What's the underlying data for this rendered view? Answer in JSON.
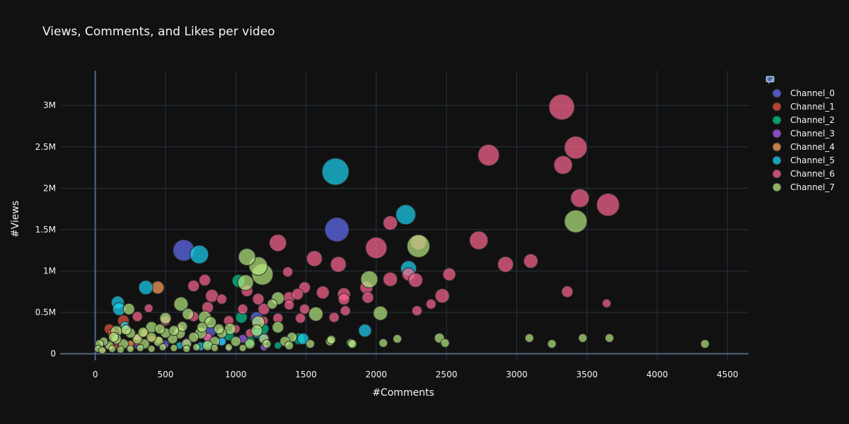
{
  "chart_data": {
    "type": "scatter",
    "title": "Views, Comments, and Likes per video",
    "xlabel": "#Comments",
    "ylabel": "#Views",
    "xlim": [
      -250,
      4650
    ],
    "ylim": [
      -80000,
      3420000
    ],
    "xticks": [
      0,
      500,
      1000,
      1500,
      2000,
      2500,
      3000,
      3500,
      4000,
      4500
    ],
    "xtick_labels": [
      "0",
      "500",
      "1000",
      "1500",
      "2000",
      "2500",
      "3000",
      "3500",
      "4000",
      "4500"
    ],
    "yticks": [
      0,
      500000,
      1000000,
      1500000,
      2000000,
      2500000,
      3000000
    ],
    "ytick_labels": [
      "0",
      "0.5M",
      "1M",
      "1.5M",
      "2M",
      "2.5M",
      "3M"
    ],
    "grid": true,
    "bubble_size": "#Likes",
    "legend": {
      "position": "right",
      "title_icon": "bubble-icon"
    },
    "series": [
      {
        "name": "Channel_0",
        "color": "#636efa",
        "points": [
          [
            630,
            1250000,
            15
          ],
          [
            1720,
            1500000,
            17
          ],
          [
            1150,
            430000,
            9
          ],
          [
            820,
            280000,
            8
          ],
          [
            1200,
            200000,
            7
          ],
          [
            900,
            150000,
            6
          ],
          [
            300,
            100000,
            5
          ],
          [
            500,
            120000,
            5
          ]
        ]
      },
      {
        "name": "Channel_1",
        "color": "#ef553b",
        "points": [
          [
            100,
            300000,
            7
          ],
          [
            200,
            400000,
            8
          ],
          [
            300,
            150000,
            6
          ],
          [
            150,
            100000,
            5
          ],
          [
            250,
            80000,
            4
          ],
          [
            120,
            250000,
            6
          ],
          [
            60,
            50000,
            4
          ],
          [
            400,
            180000,
            5
          ]
        ]
      },
      {
        "name": "Channel_2",
        "color": "#00cc96",
        "points": [
          [
            1020,
            880000,
            9
          ],
          [
            1040,
            440000,
            8
          ],
          [
            1100,
            150000,
            7
          ],
          [
            1450,
            180000,
            8
          ],
          [
            1200,
            300000,
            7
          ],
          [
            800,
            120000,
            6
          ],
          [
            950,
            220000,
            7
          ],
          [
            1300,
            100000,
            5
          ]
        ]
      },
      {
        "name": "Channel_3",
        "color": "#ab63fa",
        "points": [
          [
            1200,
            80000,
            5
          ],
          [
            950,
            60000,
            4
          ],
          [
            1050,
            180000,
            6
          ],
          [
            800,
            200000,
            6
          ],
          [
            650,
            150000,
            5
          ],
          [
            500,
            100000,
            4
          ]
        ]
      },
      {
        "name": "Channel_4",
        "color": "#ffa15a",
        "points": [
          [
            445,
            800000,
            9
          ],
          [
            200,
            300000,
            7
          ],
          [
            300,
            200000,
            6
          ],
          [
            150,
            150000,
            5
          ],
          [
            250,
            120000,
            5
          ],
          [
            350,
            250000,
            6
          ],
          [
            100,
            80000,
            4
          ],
          [
            450,
            170000,
            5
          ]
        ]
      },
      {
        "name": "Channel_5",
        "color": "#19d3f3",
        "points": [
          [
            1710,
            2200000,
            19
          ],
          [
            2210,
            1680000,
            14
          ],
          [
            740,
            1200000,
            13
          ],
          [
            360,
            800000,
            10
          ],
          [
            160,
            620000,
            9
          ],
          [
            170,
            540000,
            9
          ],
          [
            2230,
            1030000,
            11
          ],
          [
            1920,
            280000,
            9
          ],
          [
            1480,
            180000,
            8
          ],
          [
            750,
            90000,
            6
          ],
          [
            1150,
            250000,
            7
          ],
          [
            210,
            340000,
            6
          ],
          [
            600,
            100000,
            5
          ],
          [
            900,
            150000,
            6
          ]
        ]
      },
      {
        "name": "Channel_6",
        "color": "#ff6692",
        "points": [
          [
            3320,
            2980000,
            18
          ],
          [
            3420,
            2490000,
            16
          ],
          [
            3330,
            2280000,
            13
          ],
          [
            2800,
            2400000,
            15
          ],
          [
            3450,
            1880000,
            13
          ],
          [
            3650,
            1800000,
            16
          ],
          [
            2000,
            1280000,
            15
          ],
          [
            2730,
            1370000,
            13
          ],
          [
            2300,
            1350000,
            11
          ],
          [
            1300,
            1340000,
            12
          ],
          [
            1730,
            1080000,
            11
          ],
          [
            2920,
            1080000,
            11
          ],
          [
            3100,
            1120000,
            10
          ],
          [
            1560,
            1150000,
            11
          ],
          [
            2100,
            1580000,
            10
          ],
          [
            2520,
            960000,
            9
          ],
          [
            2230,
            960000,
            9
          ],
          [
            2100,
            900000,
            10
          ],
          [
            2280,
            890000,
            10
          ],
          [
            1930,
            800000,
            9
          ],
          [
            1490,
            800000,
            8
          ],
          [
            2470,
            700000,
            10
          ],
          [
            1620,
            740000,
            9
          ],
          [
            1770,
            720000,
            9
          ],
          [
            1770,
            660000,
            8
          ],
          [
            1940,
            680000,
            8
          ],
          [
            1370,
            990000,
            7
          ],
          [
            1380,
            680000,
            8
          ],
          [
            1440,
            720000,
            8
          ],
          [
            1160,
            660000,
            8
          ],
          [
            1080,
            760000,
            8
          ],
          [
            830,
            700000,
            9
          ],
          [
            780,
            890000,
            8
          ],
          [
            700,
            820000,
            8
          ],
          [
            900,
            660000,
            7
          ],
          [
            800,
            560000,
            8
          ],
          [
            1700,
            440000,
            7
          ],
          [
            1780,
            520000,
            7
          ],
          [
            2290,
            520000,
            7
          ],
          [
            2390,
            600000,
            7
          ],
          [
            3360,
            750000,
            8
          ],
          [
            3640,
            610000,
            6
          ],
          [
            1300,
            430000,
            7
          ],
          [
            1200,
            540000,
            8
          ],
          [
            1460,
            430000,
            7
          ],
          [
            1050,
            540000,
            7
          ],
          [
            1380,
            590000,
            7
          ],
          [
            1490,
            540000,
            7
          ],
          [
            700,
            450000,
            7
          ],
          [
            950,
            400000,
            7
          ],
          [
            500,
            400000,
            7
          ],
          [
            300,
            450000,
            7
          ],
          [
            380,
            550000,
            6
          ],
          [
            300,
            200000,
            5
          ],
          [
            600,
            300000,
            6
          ],
          [
            1000,
            300000,
            6
          ],
          [
            1200,
            400000,
            6
          ],
          [
            1100,
            250000,
            6
          ],
          [
            800,
            200000,
            6
          ]
        ]
      },
      {
        "name": "Channel_7",
        "color": "#b6e880",
        "points": [
          [
            3420,
            1600000,
            16
          ],
          [
            2300,
            1300000,
            16
          ],
          [
            1190,
            960000,
            15
          ],
          [
            1160,
            1060000,
            13
          ],
          [
            1080,
            1170000,
            12
          ],
          [
            1950,
            900000,
            12
          ],
          [
            1070,
            860000,
            11
          ],
          [
            2030,
            490000,
            10
          ],
          [
            1570,
            480000,
            10
          ],
          [
            610,
            600000,
            10
          ],
          [
            1300,
            670000,
            9
          ],
          [
            1160,
            380000,
            9
          ],
          [
            780,
            440000,
            9
          ],
          [
            660,
            480000,
            8
          ],
          [
            500,
            430000,
            8
          ],
          [
            820,
            380000,
            8
          ],
          [
            240,
            540000,
            8
          ],
          [
            1260,
            600000,
            7
          ],
          [
            1300,
            320000,
            8
          ],
          [
            1150,
            280000,
            8
          ],
          [
            960,
            300000,
            8
          ],
          [
            750,
            250000,
            8
          ],
          [
            600,
            250000,
            8
          ],
          [
            400,
            320000,
            8
          ],
          [
            150,
            270000,
            8
          ],
          [
            2450,
            190000,
            7
          ],
          [
            2150,
            180000,
            6
          ],
          [
            3090,
            190000,
            6
          ],
          [
            3470,
            190000,
            6
          ],
          [
            3660,
            190000,
            6
          ],
          [
            4340,
            120000,
            6
          ],
          [
            3250,
            120000,
            6
          ],
          [
            2490,
            130000,
            6
          ],
          [
            2050,
            130000,
            6
          ],
          [
            1820,
            130000,
            6
          ],
          [
            1670,
            150000,
            6
          ],
          [
            1530,
            120000,
            6
          ],
          [
            1400,
            200000,
            7
          ],
          [
            1350,
            150000,
            7
          ],
          [
            1200,
            180000,
            7
          ],
          [
            1100,
            120000,
            7
          ],
          [
            1000,
            150000,
            7
          ],
          [
            900,
            250000,
            7
          ],
          [
            850,
            150000,
            7
          ],
          [
            800,
            100000,
            7
          ],
          [
            700,
            200000,
            7
          ],
          [
            650,
            120000,
            7
          ],
          [
            550,
            180000,
            7
          ],
          [
            500,
            250000,
            7
          ],
          [
            450,
            150000,
            7
          ],
          [
            400,
            200000,
            7
          ],
          [
            350,
            120000,
            7
          ],
          [
            300,
            180000,
            7
          ],
          [
            250,
            250000,
            7
          ],
          [
            200,
            120000,
            7
          ],
          [
            150,
            180000,
            7
          ],
          [
            100,
            100000,
            6
          ],
          [
            60,
            150000,
            6
          ],
          [
            30,
            120000,
            6
          ],
          [
            20,
            60000,
            5
          ],
          [
            50,
            40000,
            5
          ],
          [
            120,
            60000,
            5
          ],
          [
            180,
            50000,
            5
          ],
          [
            250,
            60000,
            5
          ],
          [
            320,
            70000,
            5
          ],
          [
            400,
            60000,
            5
          ],
          [
            480,
            80000,
            5
          ],
          [
            560,
            70000,
            5
          ],
          [
            650,
            60000,
            5
          ],
          [
            720,
            80000,
            5
          ],
          [
            850,
            70000,
            5
          ],
          [
            950,
            80000,
            5
          ],
          [
            1050,
            70000,
            5
          ],
          [
            1220,
            120000,
            6
          ],
          [
            1380,
            100000,
            6
          ],
          [
            880,
            300000,
            7
          ],
          [
            760,
            320000,
            7
          ],
          [
            620,
            330000,
            7
          ],
          [
            560,
            280000,
            7
          ],
          [
            460,
            300000,
            7
          ],
          [
            340,
            260000,
            7
          ],
          [
            220,
            290000,
            7
          ],
          [
            130,
            200000,
            7
          ],
          [
            1830,
            120000,
            6
          ],
          [
            1680,
            170000,
            6
          ]
        ]
      }
    ]
  }
}
